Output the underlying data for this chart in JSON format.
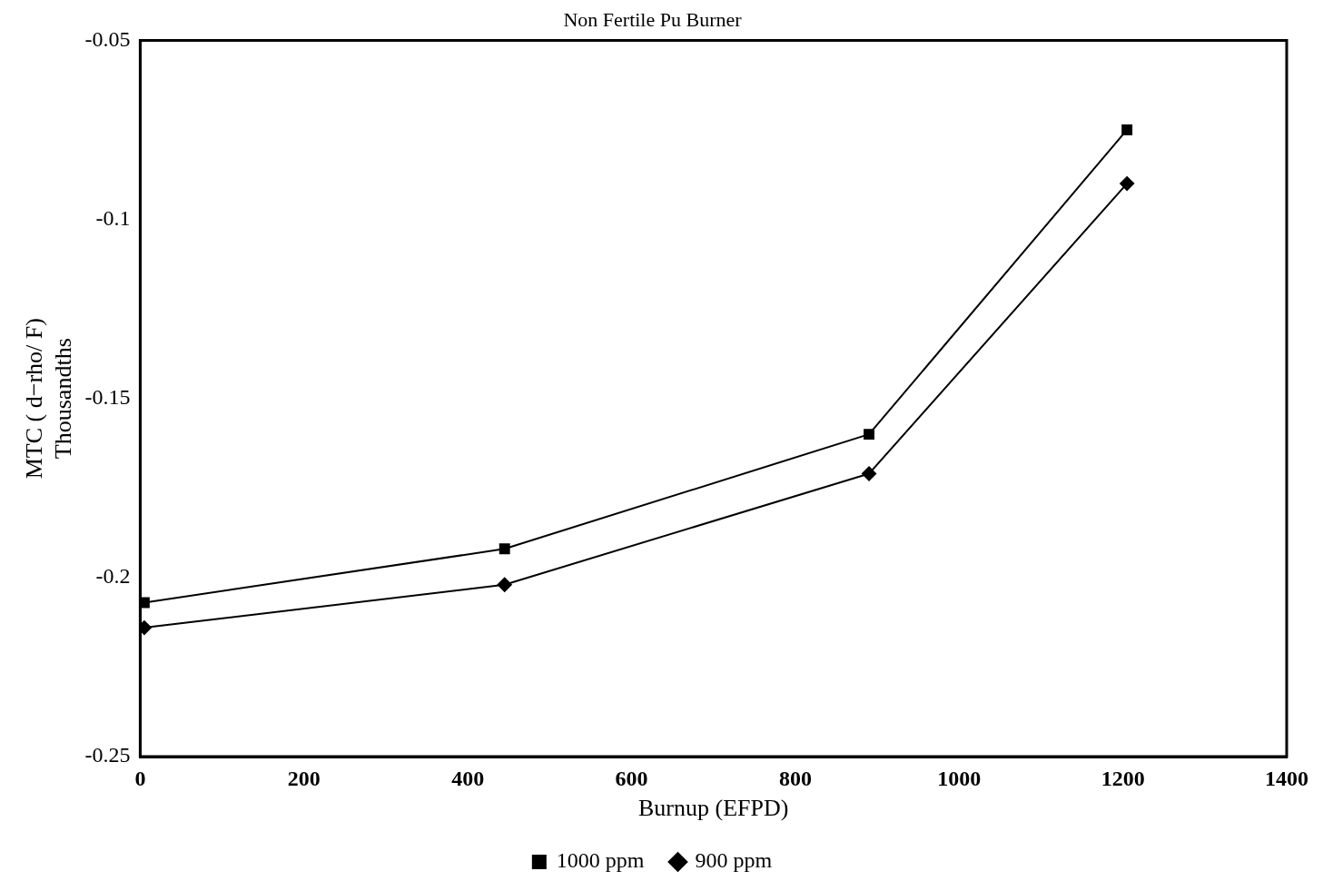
{
  "chart_data": {
    "type": "line",
    "title": "Non Fertile Pu Burner",
    "xlabel": "Burnup (EFPD)",
    "ylabel": "MTC ( d−rho/ F)\nThousandths",
    "xlim": [
      0,
      1400
    ],
    "xticks": [
      0,
      200,
      400,
      600,
      800,
      1000,
      1200,
      1400
    ],
    "ylim": [
      -0.25,
      -0.05
    ],
    "yticks": [
      -0.25,
      -0.2,
      -0.15,
      -0.1,
      -0.05
    ],
    "grid": false,
    "legend": "bottom",
    "line_style": "solid",
    "series": [
      {
        "name": "1000 ppm",
        "color": "#000000",
        "marker": "square",
        "x": [
          5,
          445,
          890,
          1205
        ],
        "values": [
          -0.207,
          -0.192,
          -0.16,
          -0.075
        ]
      },
      {
        "name": "900 ppm",
        "color": "#000000",
        "marker": "diamond",
        "x": [
          5,
          445,
          890,
          1205
        ],
        "values": [
          -0.214,
          -0.202,
          -0.171,
          -0.09
        ]
      }
    ]
  }
}
